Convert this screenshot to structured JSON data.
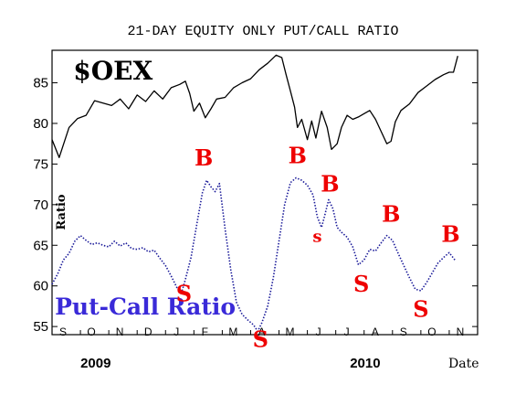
{
  "chart_data": {
    "type": "line",
    "title": "21-DAY EQUITY ONLY PUT/CALL RATIO",
    "ylabel": "Ratio",
    "xlabel": "Date",
    "ylim": [
      54,
      89
    ],
    "yticks": [
      55,
      60,
      65,
      70,
      75,
      80,
      85
    ],
    "xlim": [
      0,
      15
    ],
    "month_ticks": [
      "S",
      "O",
      "N",
      "D",
      "J",
      "F",
      "M",
      "A",
      "M",
      "J",
      "J",
      "A",
      "S",
      "O",
      "N"
    ],
    "year_labels": [
      {
        "text": "2009",
        "x": 1
      },
      {
        "text": "2010",
        "x": 10.5
      }
    ],
    "grid": false,
    "colors": {
      "oex": "#000000",
      "ratio": "#1a1a99",
      "signals": "#ee0000",
      "label": "#3a2ad8"
    },
    "series": [
      {
        "name": "$OEX",
        "points": [
          [
            0,
            78
          ],
          [
            0.25,
            75.8
          ],
          [
            0.6,
            79.5
          ],
          [
            0.9,
            80.6
          ],
          [
            1.2,
            81
          ],
          [
            1.5,
            82.8
          ],
          [
            1.8,
            82.5
          ],
          [
            2.1,
            82.2
          ],
          [
            2.4,
            83
          ],
          [
            2.7,
            81.8
          ],
          [
            3.0,
            83.5
          ],
          [
            3.3,
            82.7
          ],
          [
            3.6,
            84
          ],
          [
            3.9,
            83
          ],
          [
            4.2,
            84.4
          ],
          [
            4.5,
            84.8
          ],
          [
            4.7,
            85.2
          ],
          [
            4.85,
            83.7
          ],
          [
            5.0,
            81.5
          ],
          [
            5.2,
            82.5
          ],
          [
            5.4,
            80.7
          ],
          [
            5.6,
            81.8
          ],
          [
            5.8,
            83
          ],
          [
            6.1,
            83.2
          ],
          [
            6.4,
            84.4
          ],
          [
            6.7,
            85
          ],
          [
            7.0,
            85.5
          ],
          [
            7.3,
            86.6
          ],
          [
            7.6,
            87.4
          ],
          [
            7.9,
            88.4
          ],
          [
            8.1,
            88.1
          ],
          [
            8.25,
            86
          ],
          [
            8.4,
            84
          ],
          [
            8.55,
            82
          ],
          [
            8.65,
            79.5
          ],
          [
            8.8,
            80.5
          ],
          [
            9.0,
            78
          ],
          [
            9.15,
            80.3
          ],
          [
            9.3,
            78.2
          ],
          [
            9.5,
            81.5
          ],
          [
            9.7,
            79.5
          ],
          [
            9.85,
            76.8
          ],
          [
            10.05,
            77.5
          ],
          [
            10.2,
            79.5
          ],
          [
            10.4,
            81
          ],
          [
            10.6,
            80.5
          ],
          [
            10.8,
            80.8
          ],
          [
            11.0,
            81.2
          ],
          [
            11.2,
            81.6
          ],
          [
            11.4,
            80.5
          ],
          [
            11.6,
            79
          ],
          [
            11.8,
            77.5
          ],
          [
            11.95,
            77.8
          ],
          [
            12.1,
            80.2
          ],
          [
            12.3,
            81.6
          ],
          [
            12.6,
            82.4
          ],
          [
            12.9,
            83.8
          ],
          [
            13.2,
            84.6
          ],
          [
            13.5,
            85.4
          ],
          [
            13.8,
            86
          ],
          [
            14.0,
            86.3
          ],
          [
            14.15,
            86.3
          ],
          [
            14.3,
            88.3
          ]
        ]
      },
      {
        "name": "Put-Call Ratio",
        "points": [
          [
            0,
            60.2
          ],
          [
            0.2,
            61.5
          ],
          [
            0.4,
            63.2
          ],
          [
            0.6,
            64
          ],
          [
            0.8,
            65.5
          ],
          [
            1.0,
            66.2
          ],
          [
            1.2,
            65.6
          ],
          [
            1.4,
            65.1
          ],
          [
            1.6,
            65.3
          ],
          [
            1.8,
            65
          ],
          [
            2.0,
            64.8
          ],
          [
            2.2,
            65.5
          ],
          [
            2.4,
            64.9
          ],
          [
            2.6,
            65.3
          ],
          [
            2.8,
            64.6
          ],
          [
            3.0,
            64.5
          ],
          [
            3.2,
            64.7
          ],
          [
            3.4,
            64.2
          ],
          [
            3.6,
            64.4
          ],
          [
            3.8,
            63.4
          ],
          [
            4.0,
            62.5
          ],
          [
            4.2,
            61.2
          ],
          [
            4.4,
            59.8
          ],
          [
            4.55,
            59
          ],
          [
            4.7,
            60.8
          ],
          [
            4.9,
            63.5
          ],
          [
            5.1,
            67.5
          ],
          [
            5.3,
            71.5
          ],
          [
            5.45,
            73
          ],
          [
            5.6,
            72.2
          ],
          [
            5.75,
            71.6
          ],
          [
            5.9,
            72.6
          ],
          [
            6.1,
            67
          ],
          [
            6.3,
            62
          ],
          [
            6.5,
            58
          ],
          [
            6.7,
            56.5
          ],
          [
            6.9,
            55.8
          ],
          [
            7.1,
            55.2
          ],
          [
            7.25,
            54.4
          ],
          [
            7.4,
            55.5
          ],
          [
            7.6,
            57.5
          ],
          [
            7.8,
            61
          ],
          [
            8.0,
            65.5
          ],
          [
            8.2,
            70
          ],
          [
            8.4,
            72.7
          ],
          [
            8.6,
            73.3
          ],
          [
            8.8,
            73
          ],
          [
            9.0,
            72.4
          ],
          [
            9.2,
            71.2
          ],
          [
            9.35,
            68.5
          ],
          [
            9.5,
            67.2
          ],
          [
            9.6,
            68.5
          ],
          [
            9.75,
            70.6
          ],
          [
            9.9,
            69.5
          ],
          [
            10.05,
            67.2
          ],
          [
            10.2,
            66.6
          ],
          [
            10.4,
            66
          ],
          [
            10.6,
            64.8
          ],
          [
            10.8,
            62.6
          ],
          [
            11.0,
            63.2
          ],
          [
            11.2,
            64.5
          ],
          [
            11.4,
            64.3
          ],
          [
            11.6,
            65.3
          ],
          [
            11.8,
            66.2
          ],
          [
            12.0,
            65.6
          ],
          [
            12.2,
            64
          ],
          [
            12.4,
            62.5
          ],
          [
            12.6,
            61
          ],
          [
            12.8,
            59.6
          ],
          [
            13.0,
            59.4
          ],
          [
            13.2,
            60.4
          ],
          [
            13.4,
            61.6
          ],
          [
            13.6,
            62.8
          ],
          [
            13.8,
            63.5
          ],
          [
            14.0,
            64.1
          ],
          [
            14.2,
            63.2
          ]
        ]
      }
    ],
    "annotations": [
      {
        "text": "$OEX",
        "x": 0.75,
        "y": 85.4,
        "role": "oex-label"
      },
      {
        "text": "Put-Call Ratio",
        "x": 0.1,
        "y": 56.5,
        "role": "ratio-label"
      },
      {
        "text": "B",
        "x": 5.35,
        "y": 74.8,
        "role": "buy"
      },
      {
        "text": "B",
        "x": 8.65,
        "y": 75.1,
        "role": "buy"
      },
      {
        "text": "B",
        "x": 9.8,
        "y": 71.6,
        "role": "buy"
      },
      {
        "text": "B",
        "x": 11.95,
        "y": 67.9,
        "role": "buy"
      },
      {
        "text": "B",
        "x": 14.05,
        "y": 65.4,
        "role": "buy"
      },
      {
        "text": "S",
        "x": 4.65,
        "y": 58.1,
        "role": "sell"
      },
      {
        "text": "S",
        "x": 7.35,
        "y": 52.5,
        "role": "sell"
      },
      {
        "text": "s",
        "x": 9.35,
        "y": 65.4,
        "role": "sell-small"
      },
      {
        "text": "S",
        "x": 10.9,
        "y": 59.3,
        "role": "sell"
      },
      {
        "text": "S",
        "x": 13.0,
        "y": 56.2,
        "role": "sell"
      }
    ]
  }
}
